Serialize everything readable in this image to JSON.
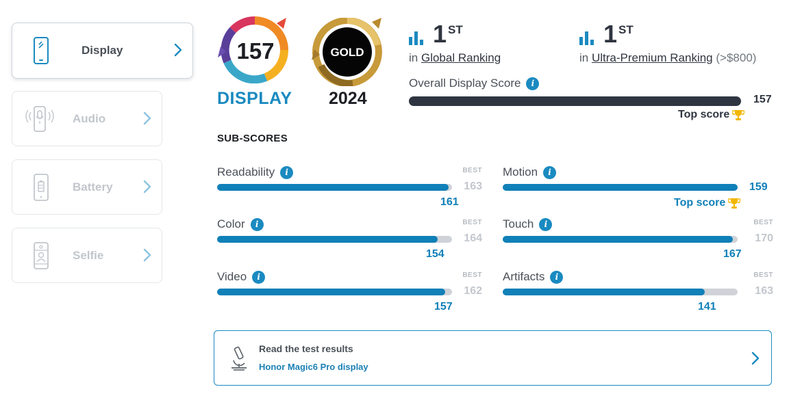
{
  "sidebar": {
    "items": [
      {
        "label": "Display",
        "active": true,
        "icon": "phone-icon"
      },
      {
        "label": "Audio",
        "active": false,
        "icon": "phone-speaker-icon"
      },
      {
        "label": "Battery",
        "active": false,
        "icon": "phone-battery-icon"
      },
      {
        "label": "Selfie",
        "active": false,
        "icon": "phone-selfie-icon"
      }
    ]
  },
  "badge": {
    "score": "157",
    "category": "DISPLAY",
    "award": "GOLD",
    "year": "2024"
  },
  "rankings": [
    {
      "rank": "1",
      "suffix": "ST",
      "prefix": "in",
      "name": "Global Ranking",
      "extra": ""
    },
    {
      "rank": "1",
      "suffix": "ST",
      "prefix": "in",
      "name": "Ultra-Premium Ranking",
      "extra": "(>$800)"
    }
  ],
  "overall": {
    "label": "Overall Display Score",
    "value": "157",
    "fraction": 1.0,
    "top_label": "Top score"
  },
  "subscores": {
    "title": "SUB-SCORES",
    "best_label": "BEST",
    "items": [
      {
        "name": "Readability",
        "score": "161",
        "best": "163",
        "fraction": 0.985
      },
      {
        "name": "Motion",
        "score": "159",
        "best": "",
        "fraction": 1.0,
        "top_label": "Top score"
      },
      {
        "name": "Color",
        "score": "154",
        "best": "164",
        "fraction": 0.94
      },
      {
        "name": "Touch",
        "score": "167",
        "best": "170",
        "fraction": 0.98
      },
      {
        "name": "Video",
        "score": "157",
        "best": "162",
        "fraction": 0.97
      },
      {
        "name": "Artifacts",
        "score": "141",
        "best": "163",
        "fraction": 0.86
      }
    ]
  },
  "test_results": {
    "title": "Read the test results",
    "subtitle": "Honor Magic6 Pro display"
  },
  "colors": {
    "accent": "#1080b8",
    "dark": "#2f3540",
    "gold": "#f2b705"
  }
}
